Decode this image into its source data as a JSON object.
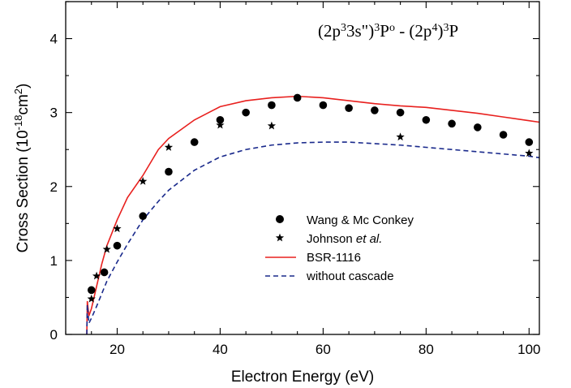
{
  "chart_data": {
    "type": "scatter",
    "title": "",
    "annotation": {
      "p1": "(2p",
      "e1": "3",
      "p2": "3s\")",
      "e2": "3",
      "p3": "P",
      "e3": "o",
      "p4": " - (2p",
      "e4": "4",
      "p5": ")",
      "e5": "3",
      "p6": "P"
    },
    "xlabel": "Electron Energy (eV)",
    "ylabel": {
      "p1": "Cross Section (10",
      "e1": "-18",
      "p2": "cm",
      "e2": "2",
      "p3": ")"
    },
    "xlim": [
      10,
      102
    ],
    "ylim": [
      0,
      4.5
    ],
    "x_ticks": [
      "20",
      "40",
      "60",
      "80",
      "100"
    ],
    "x_tick_values": [
      20,
      40,
      60,
      80,
      100
    ],
    "y_ticks": [
      "0",
      "1",
      "2",
      "3",
      "4"
    ],
    "y_tick_values": [
      0,
      1,
      2,
      3,
      4
    ],
    "legend_position": "center-right",
    "series": [
      {
        "name": "Wang & Mc Conkey",
        "kind": "circle",
        "color": "#000000",
        "x": [
          15,
          17.5,
          20,
          25,
          30,
          35,
          40,
          45,
          50,
          55,
          60,
          65,
          70,
          75,
          80,
          85,
          90,
          95,
          100
        ],
        "y": [
          0.6,
          0.84,
          1.2,
          1.6,
          2.2,
          2.6,
          2.9,
          3.0,
          3.1,
          3.2,
          3.1,
          3.06,
          3.03,
          3.0,
          2.9,
          2.85,
          2.8,
          2.7,
          2.6
        ]
      },
      {
        "name_main": "Johnson ",
        "name_italic": "et al.",
        "kind": "star",
        "color": "#000000",
        "x": [
          15,
          16,
          18,
          20,
          25,
          30,
          40,
          50,
          75,
          100
        ],
        "y": [
          0.48,
          0.79,
          1.15,
          1.43,
          2.07,
          2.53,
          2.83,
          2.82,
          2.67,
          2.45
        ]
      },
      {
        "name": "BSR-1116",
        "kind": "solid",
        "color": "#e8201e",
        "x": [
          14.1,
          14.2,
          14.5,
          15,
          16,
          17,
          18,
          20,
          22,
          25,
          28,
          30,
          35,
          40,
          45,
          50,
          55,
          60,
          65,
          70,
          75,
          80,
          85,
          90,
          95,
          100,
          102
        ],
        "y": [
          0.0,
          0.45,
          0.25,
          0.35,
          0.65,
          0.95,
          1.2,
          1.55,
          1.85,
          2.15,
          2.5,
          2.65,
          2.9,
          3.08,
          3.16,
          3.2,
          3.22,
          3.2,
          3.16,
          3.12,
          3.09,
          3.07,
          3.03,
          2.99,
          2.94,
          2.89,
          2.87
        ]
      },
      {
        "name": "without cascade",
        "kind": "dashed",
        "color": "#1a2a8c",
        "x": [
          14.1,
          14.2,
          14.5,
          15,
          16,
          17,
          18,
          20,
          22,
          25,
          28,
          30,
          35,
          40,
          45,
          50,
          55,
          60,
          65,
          70,
          75,
          80,
          85,
          90,
          95,
          100,
          102
        ],
        "y": [
          0.0,
          0.4,
          0.15,
          0.22,
          0.38,
          0.55,
          0.72,
          0.98,
          1.22,
          1.55,
          1.8,
          1.95,
          2.22,
          2.4,
          2.5,
          2.56,
          2.59,
          2.6,
          2.6,
          2.58,
          2.56,
          2.53,
          2.5,
          2.47,
          2.44,
          2.41,
          2.39
        ]
      }
    ]
  }
}
